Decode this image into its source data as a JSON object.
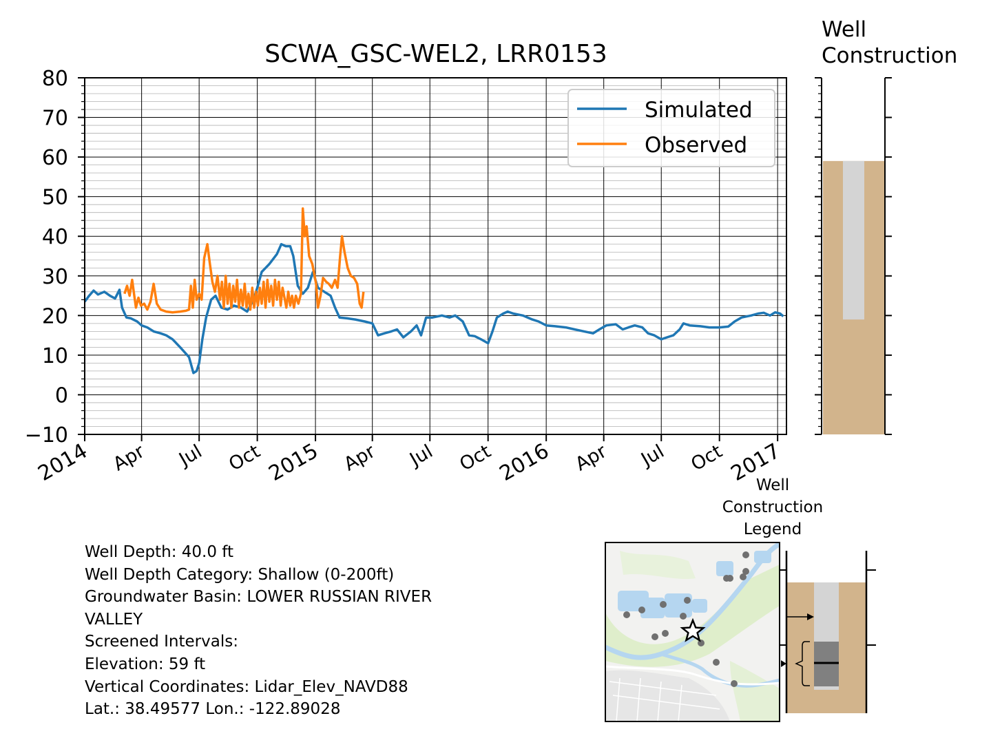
{
  "chart_data": {
    "type": "line",
    "title": "SCWA_GSC-WEL2, LRR0153",
    "xlabel": "",
    "ylabel": "",
    "ylim": [
      -10,
      80
    ],
    "xlim": [
      "2014-01-01",
      "2017-01-15"
    ],
    "yticks": [
      "80",
      "70",
      "60",
      "50",
      "40",
      "30",
      "20",
      "10",
      "0",
      "−10"
    ],
    "xticks": [
      {
        "date": "2014-01-01",
        "label": "2014"
      },
      {
        "date": "2014-04-01",
        "label": "Apr"
      },
      {
        "date": "2014-07-01",
        "label": "Jul"
      },
      {
        "date": "2014-10-01",
        "label": "Oct"
      },
      {
        "date": "2015-01-01",
        "label": "2015"
      },
      {
        "date": "2015-04-01",
        "label": "Apr"
      },
      {
        "date": "2015-07-01",
        "label": "Jul"
      },
      {
        "date": "2015-10-01",
        "label": "Oct"
      },
      {
        "date": "2016-01-01",
        "label": "2016"
      },
      {
        "date": "2016-04-01",
        "label": "Apr"
      },
      {
        "date": "2016-07-01",
        "label": "Jul"
      },
      {
        "date": "2016-10-01",
        "label": "Oct"
      },
      {
        "date": "2017-01-01",
        "label": "2017"
      }
    ],
    "grid": true,
    "legend_position": "upper-right",
    "series": [
      {
        "name": "Simulated",
        "color": "#1f77b4",
        "points": [
          [
            "2014-01-01",
            23.5
          ],
          [
            "2014-01-08",
            25.0
          ],
          [
            "2014-01-15",
            26.3
          ],
          [
            "2014-01-22",
            25.3
          ],
          [
            "2014-02-01",
            26.0
          ],
          [
            "2014-02-10",
            25.0
          ],
          [
            "2014-02-18",
            24.3
          ],
          [
            "2014-02-25",
            26.5
          ],
          [
            "2014-03-01",
            22.0
          ],
          [
            "2014-03-08",
            19.5
          ],
          [
            "2014-03-15",
            19.3
          ],
          [
            "2014-03-25",
            18.5
          ],
          [
            "2014-04-01",
            17.5
          ],
          [
            "2014-04-10",
            17.0
          ],
          [
            "2014-04-20",
            16.0
          ],
          [
            "2014-05-01",
            15.5
          ],
          [
            "2014-05-10",
            15.0
          ],
          [
            "2014-05-20",
            14.0
          ],
          [
            "2014-06-01",
            12.0
          ],
          [
            "2014-06-15",
            9.5
          ],
          [
            "2014-06-22",
            5.5
          ],
          [
            "2014-06-27",
            6.0
          ],
          [
            "2014-07-01",
            8.0
          ],
          [
            "2014-07-06",
            14.0
          ],
          [
            "2014-07-12",
            19.5
          ],
          [
            "2014-07-20",
            24.0
          ],
          [
            "2014-07-27",
            25.0
          ],
          [
            "2014-08-05",
            22.0
          ],
          [
            "2014-08-15",
            21.5
          ],
          [
            "2014-08-25",
            22.5
          ],
          [
            "2014-09-05",
            22.0
          ],
          [
            "2014-09-15",
            21.0
          ],
          [
            "2014-09-25",
            24.0
          ],
          [
            "2014-10-01",
            27.0
          ],
          [
            "2014-10-08",
            31.0
          ],
          [
            "2014-10-20",
            33.0
          ],
          [
            "2014-11-01",
            35.5
          ],
          [
            "2014-11-08",
            38.0
          ],
          [
            "2014-11-15",
            37.5
          ],
          [
            "2014-11-22",
            37.5
          ],
          [
            "2014-11-27",
            35.0
          ],
          [
            "2014-12-04",
            27.5
          ],
          [
            "2014-12-12",
            25.5
          ],
          [
            "2014-12-20",
            27.0
          ],
          [
            "2014-12-28",
            31.0
          ],
          [
            "2015-01-05",
            27.0
          ],
          [
            "2015-01-15",
            26.0
          ],
          [
            "2015-01-25",
            25.0
          ],
          [
            "2015-02-01",
            22.0
          ],
          [
            "2015-02-08",
            19.5
          ],
          [
            "2015-02-20",
            19.3
          ],
          [
            "2015-03-05",
            19.0
          ],
          [
            "2015-03-20",
            18.5
          ],
          [
            "2015-04-01",
            18.0
          ],
          [
            "2015-04-10",
            15.0
          ],
          [
            "2015-04-20",
            15.5
          ],
          [
            "2015-05-01",
            16.0
          ],
          [
            "2015-05-10",
            16.5
          ],
          [
            "2015-05-20",
            14.5
          ],
          [
            "2015-06-01",
            16.0
          ],
          [
            "2015-06-10",
            17.5
          ],
          [
            "2015-06-17",
            15.0
          ],
          [
            "2015-06-25",
            19.5
          ],
          [
            "2015-07-05",
            19.5
          ],
          [
            "2015-07-20",
            20.0
          ],
          [
            "2015-08-01",
            19.5
          ],
          [
            "2015-08-10",
            20.0
          ],
          [
            "2015-08-22",
            18.5
          ],
          [
            "2015-09-01",
            15.0
          ],
          [
            "2015-09-10",
            14.8
          ],
          [
            "2015-09-20",
            14.0
          ],
          [
            "2015-10-01",
            13.0
          ],
          [
            "2015-10-08",
            16.0
          ],
          [
            "2015-10-15",
            19.5
          ],
          [
            "2015-10-25",
            20.5
          ],
          [
            "2015-11-01",
            21.0
          ],
          [
            "2015-11-10",
            20.5
          ],
          [
            "2015-11-25",
            20.0
          ],
          [
            "2015-12-10",
            19.0
          ],
          [
            "2015-12-20",
            18.5
          ],
          [
            "2016-01-01",
            17.5
          ],
          [
            "2016-01-15",
            17.3
          ],
          [
            "2016-02-01",
            17.0
          ],
          [
            "2016-02-15",
            16.5
          ],
          [
            "2016-03-01",
            16.0
          ],
          [
            "2016-03-15",
            15.5
          ],
          [
            "2016-03-25",
            16.5
          ],
          [
            "2016-04-05",
            17.5
          ],
          [
            "2016-04-20",
            17.8
          ],
          [
            "2016-05-01",
            16.5
          ],
          [
            "2016-05-10",
            17.0
          ],
          [
            "2016-05-20",
            17.5
          ],
          [
            "2016-06-01",
            17.0
          ],
          [
            "2016-06-10",
            15.5
          ],
          [
            "2016-06-20",
            15.0
          ],
          [
            "2016-07-01",
            14.0
          ],
          [
            "2016-07-10",
            14.5
          ],
          [
            "2016-07-20",
            15.0
          ],
          [
            "2016-07-30",
            16.5
          ],
          [
            "2016-08-05",
            18.0
          ],
          [
            "2016-08-15",
            17.5
          ],
          [
            "2016-09-01",
            17.3
          ],
          [
            "2016-09-15",
            17.0
          ],
          [
            "2016-10-01",
            17.0
          ],
          [
            "2016-10-15",
            17.2
          ],
          [
            "2016-10-25",
            18.5
          ],
          [
            "2016-11-05",
            19.5
          ],
          [
            "2016-11-20",
            20.0
          ],
          [
            "2016-12-01",
            20.5
          ],
          [
            "2016-12-10",
            20.7
          ],
          [
            "2016-12-20",
            20.0
          ],
          [
            "2016-12-28",
            20.8
          ],
          [
            "2017-01-05",
            20.5
          ],
          [
            "2017-01-10",
            19.8
          ]
        ]
      },
      {
        "name": "Observed",
        "color": "#ff7f0e",
        "points": [
          [
            "2014-03-05",
            25.5
          ],
          [
            "2014-03-09",
            27.5
          ],
          [
            "2014-03-13",
            25.0
          ],
          [
            "2014-03-17",
            29.0
          ],
          [
            "2014-03-20",
            25.5
          ],
          [
            "2014-03-23",
            22.0
          ],
          [
            "2014-03-27",
            24.5
          ],
          [
            "2014-03-31",
            22.5
          ],
          [
            "2014-04-05",
            23.0
          ],
          [
            "2014-04-10",
            21.5
          ],
          [
            "2014-04-15",
            23.5
          ],
          [
            "2014-04-20",
            28.0
          ],
          [
            "2014-04-25",
            23.0
          ],
          [
            "2014-05-01",
            21.5
          ],
          [
            "2014-05-10",
            21.0
          ],
          [
            "2014-05-20",
            20.8
          ],
          [
            "2014-06-01",
            21.0
          ],
          [
            "2014-06-10",
            21.2
          ],
          [
            "2014-06-15",
            21.5
          ],
          [
            "2014-06-18",
            27.5
          ],
          [
            "2014-06-21",
            22.0
          ],
          [
            "2014-06-24",
            29.0
          ],
          [
            "2014-06-27",
            24.0
          ],
          [
            "2014-07-01",
            25.5
          ],
          [
            "2014-07-05",
            24.0
          ],
          [
            "2014-07-09",
            34.5
          ],
          [
            "2014-07-14",
            38.0
          ],
          [
            "2014-07-18",
            33.0
          ],
          [
            "2014-07-22",
            28.5
          ],
          [
            "2014-07-26",
            26.0
          ],
          [
            "2014-07-30",
            30.0
          ],
          [
            "2014-08-03",
            24.0
          ],
          [
            "2014-08-06",
            28.5
          ],
          [
            "2014-08-09",
            22.0
          ],
          [
            "2014-08-12",
            30.0
          ],
          [
            "2014-08-15",
            23.0
          ],
          [
            "2014-08-18",
            28.0
          ],
          [
            "2014-08-21",
            22.0
          ],
          [
            "2014-08-24",
            27.5
          ],
          [
            "2014-08-27",
            23.5
          ],
          [
            "2014-08-30",
            29.0
          ],
          [
            "2014-09-02",
            22.0
          ],
          [
            "2014-09-05",
            26.5
          ],
          [
            "2014-09-08",
            22.5
          ],
          [
            "2014-09-11",
            28.0
          ],
          [
            "2014-09-14",
            22.0
          ],
          [
            "2014-09-17",
            25.5
          ],
          [
            "2014-09-20",
            21.5
          ],
          [
            "2014-09-23",
            27.0
          ],
          [
            "2014-09-26",
            22.0
          ],
          [
            "2014-09-29",
            26.0
          ],
          [
            "2014-10-02",
            22.5
          ],
          [
            "2014-10-05",
            27.0
          ],
          [
            "2014-10-08",
            23.0
          ],
          [
            "2014-10-11",
            28.5
          ],
          [
            "2014-10-14",
            22.0
          ],
          [
            "2014-10-17",
            29.0
          ],
          [
            "2014-10-20",
            23.5
          ],
          [
            "2014-10-23",
            27.5
          ],
          [
            "2014-10-26",
            22.5
          ],
          [
            "2014-10-29",
            29.0
          ],
          [
            "2014-11-01",
            24.0
          ],
          [
            "2014-11-04",
            28.5
          ],
          [
            "2014-11-07",
            22.5
          ],
          [
            "2014-11-10",
            27.0
          ],
          [
            "2014-11-13",
            24.5
          ],
          [
            "2014-11-16",
            22.0
          ],
          [
            "2014-11-19",
            26.0
          ],
          [
            "2014-11-22",
            22.5
          ],
          [
            "2014-11-25",
            25.0
          ],
          [
            "2014-11-28",
            22.0
          ],
          [
            "2014-12-01",
            25.0
          ],
          [
            "2014-12-05",
            23.0
          ],
          [
            "2014-12-09",
            25.5
          ],
          [
            "2014-12-12",
            47.0
          ],
          [
            "2014-12-15",
            40.0
          ],
          [
            "2014-12-18",
            42.5
          ],
          [
            "2014-12-22",
            35.0
          ],
          [
            "2014-12-27",
            33.0
          ],
          [
            "2015-01-02",
            28.0
          ],
          [
            "2015-01-05",
            22.0
          ],
          [
            "2015-01-09",
            25.0
          ],
          [
            "2015-01-13",
            29.5
          ],
          [
            "2015-01-18",
            28.5
          ],
          [
            "2015-01-22",
            28.0
          ],
          [
            "2015-01-27",
            27.0
          ],
          [
            "2015-02-01",
            29.0
          ],
          [
            "2015-02-05",
            27.0
          ],
          [
            "2015-02-09",
            35.0
          ],
          [
            "2015-02-12",
            40.0
          ],
          [
            "2015-02-16",
            36.0
          ],
          [
            "2015-02-21",
            32.0
          ],
          [
            "2015-02-26",
            30.0
          ],
          [
            "2015-03-03",
            29.5
          ],
          [
            "2015-03-08",
            28.0
          ],
          [
            "2015-03-12",
            23.0
          ],
          [
            "2015-03-15",
            22.0
          ],
          [
            "2015-03-18",
            26.0
          ]
        ]
      }
    ]
  },
  "well_construction": {
    "title_line1": "Well",
    "title_line2": "Construction",
    "ground_elevation_ft": 59,
    "screen_bottom_ft": 19,
    "ylim": [
      -10,
      80
    ],
    "casing_color": "#d4d4d4",
    "soil_color": "#d2b48c"
  },
  "legend_panel": {
    "title_line1": "Well",
    "title_line2": "Construction",
    "title_line3": "Legend"
  },
  "info": {
    "well_depth": "Well Depth: 40.0 ft",
    "depth_category": "Well Depth Category: Shallow (0-200ft)",
    "basin_line1": "Groundwater Basin: LOWER RUSSIAN RIVER",
    "basin_line2": "VALLEY",
    "screened": "Screened Intervals:",
    "elevation": "Elevation: 59 ft",
    "vertical": "Vertical Coordinates: Lidar_Elev_NAVD88",
    "latlon": "Lat.: 38.49577 Lon.: -122.89028"
  },
  "map": {
    "water_color": "#b5d6f0",
    "land_color": "#f2f2f0",
    "veg_color": "#dfeecb",
    "well_marker": "star-icon",
    "nearby_wells": 14
  }
}
